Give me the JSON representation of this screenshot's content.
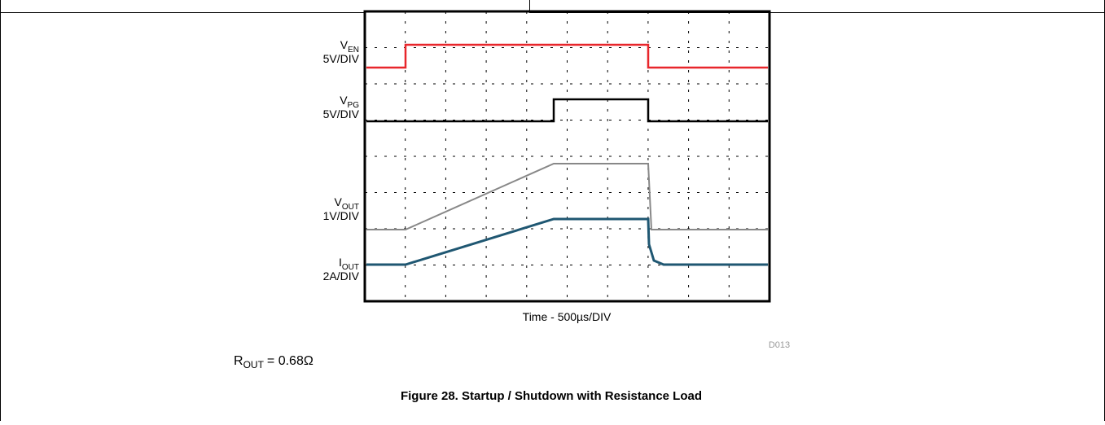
{
  "figure": {
    "channels": [
      {
        "symbol": "V",
        "subscript": "EN",
        "scale": "5V/DIV"
      },
      {
        "symbol": "V",
        "subscript": "PG",
        "scale": "5V/DIV"
      },
      {
        "symbol": "V",
        "subscript": "OUT",
        "scale": "1V/DIV"
      },
      {
        "symbol": "I",
        "subscript": "OUT",
        "scale": "2A/DIV"
      }
    ],
    "x_axis_label": "Time - 500µs/DIV",
    "figure_id": "D013",
    "note": {
      "symbol": "R",
      "subscript": "OUT",
      "text": "= 0.68Ω"
    },
    "caption": "Figure 28. Startup / Shutdown with Resistance Load"
  }
}
